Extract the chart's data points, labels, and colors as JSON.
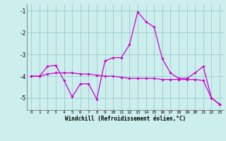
{
  "xlabel": "Windchill (Refroidissement éolien,°C)",
  "bg_color": "#cceeed",
  "line_color": "#cc00cc",
  "grid_color": "#99cccc",
  "xlim": [
    -0.5,
    23.5
  ],
  "ylim": [
    -5.55,
    -0.7
  ],
  "yticks": [
    -5,
    -4,
    -3,
    -2,
    -1
  ],
  "xticks": [
    0,
    1,
    2,
    3,
    4,
    5,
    6,
    7,
    8,
    9,
    10,
    11,
    12,
    13,
    14,
    15,
    16,
    17,
    18,
    19,
    20,
    21,
    22,
    23
  ],
  "line1_x": [
    0,
    1,
    2,
    3,
    4,
    5,
    6,
    7,
    8,
    9,
    10,
    11,
    12,
    13,
    14,
    15,
    16,
    17,
    18,
    19,
    20,
    21,
    22,
    23
  ],
  "line1_y": [
    -4.0,
    -4.0,
    -3.55,
    -3.5,
    -4.2,
    -4.95,
    -4.35,
    -4.35,
    -5.05,
    -3.3,
    -3.15,
    -3.15,
    -2.55,
    -1.05,
    -1.5,
    -1.75,
    -3.2,
    -3.85,
    -4.1,
    -4.1,
    -3.85,
    -3.55,
    -5.0,
    -5.3
  ],
  "line2_x": [
    0,
    1,
    2,
    3,
    4,
    5,
    6,
    7,
    8,
    9,
    10,
    11,
    12,
    13,
    14,
    15,
    16,
    17,
    18,
    19,
    20,
    21,
    22,
    23
  ],
  "line2_y": [
    -4.0,
    -4.0,
    -3.9,
    -3.85,
    -3.85,
    -3.85,
    -3.9,
    -3.9,
    -3.95,
    -4.0,
    -4.0,
    -4.05,
    -4.1,
    -4.1,
    -4.1,
    -4.1,
    -4.15,
    -4.15,
    -4.15,
    -4.15,
    -4.15,
    -4.2,
    -5.0,
    -5.28
  ]
}
